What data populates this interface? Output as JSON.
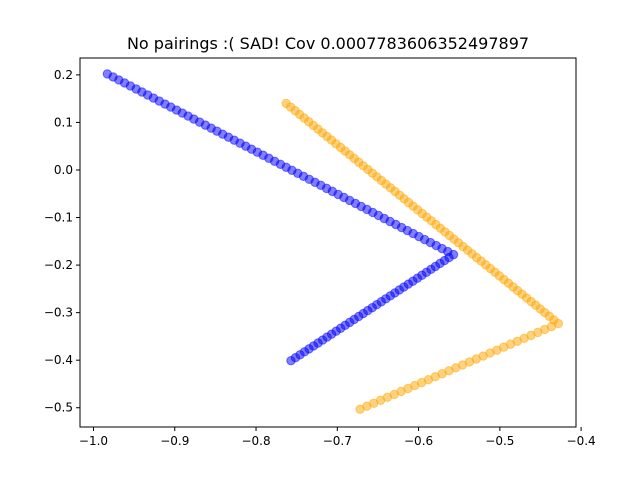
{
  "chart_data": {
    "type": "scatter",
    "title": "No pairings :( SAD! Cov 0.0007783606352497897",
    "xlabel": "",
    "ylabel": "",
    "xlim": [
      -1.0166,
      -0.4063
    ],
    "ylim": [
      -0.5405,
      0.2355
    ],
    "x_ticks": [
      -1.0,
      -0.9,
      -0.8,
      -0.7,
      -0.6,
      -0.5,
      -0.4
    ],
    "x_tick_labels": [
      "−1.0",
      "−0.9",
      "−0.8",
      "−0.7",
      "−0.6",
      "−0.5",
      "−0.4"
    ],
    "y_ticks": [
      -0.5,
      -0.4,
      -0.3,
      -0.2,
      -0.1,
      0.0,
      0.1,
      0.2
    ],
    "y_tick_labels": [
      "−0.5",
      "−0.4",
      "−0.3",
      "−0.2",
      "−0.1",
      "0.0",
      "0.1",
      "0.2"
    ],
    "grid": false,
    "legend": "none",
    "series": [
      {
        "color": "#0000ff",
        "alpha": 0.5,
        "segments": [
          {
            "x0": -0.983,
            "y0": 0.202,
            "x1": -0.557,
            "y1": -0.178,
            "n": 61
          },
          {
            "x0": -0.557,
            "y0": -0.178,
            "x1": -0.757,
            "y1": -0.401,
            "n": 37
          }
        ]
      },
      {
        "color": "#ffa500",
        "alpha": 0.5,
        "segments": [
          {
            "x0": -0.763,
            "y0": 0.14,
            "x1": -0.428,
            "y1": -0.323,
            "n": 61
          },
          {
            "x0": -0.428,
            "y0": -0.323,
            "x1": -0.672,
            "y1": -0.503,
            "n": 30
          }
        ]
      }
    ]
  }
}
